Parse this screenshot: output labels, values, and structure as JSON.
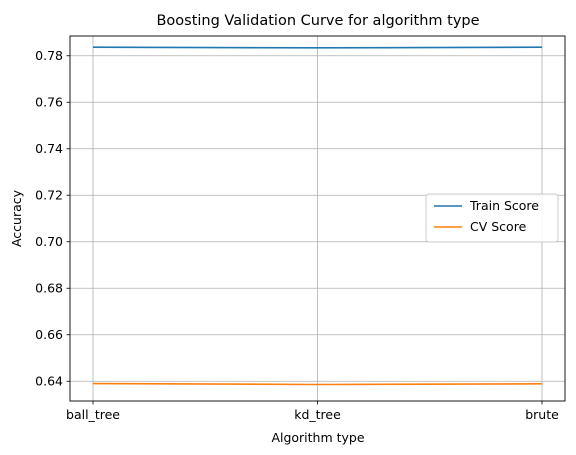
{
  "chart_data": {
    "type": "line",
    "title": "Boosting Validation Curve for algorithm type",
    "xlabel": "Algorithm type",
    "ylabel": "Accuracy",
    "categories": [
      "ball_tree",
      "kd_tree",
      "brute"
    ],
    "ylim": [
      0.6315,
      0.7885
    ],
    "yticks": [
      0.64,
      0.66,
      0.68,
      0.7,
      0.72,
      0.74,
      0.76,
      0.78
    ],
    "ytick_labels": [
      "0.64",
      "0.66",
      "0.68",
      "0.70",
      "0.72",
      "0.74",
      "0.76",
      "0.78"
    ],
    "grid": true,
    "legend_position": "center-right",
    "series": [
      {
        "name": "Train Score",
        "color": "#1f77b4",
        "values": [
          0.7837,
          0.7834,
          0.7837
        ]
      },
      {
        "name": "CV Score",
        "color": "#ff7f0e",
        "values": [
          0.639,
          0.6386,
          0.6389
        ]
      }
    ]
  }
}
